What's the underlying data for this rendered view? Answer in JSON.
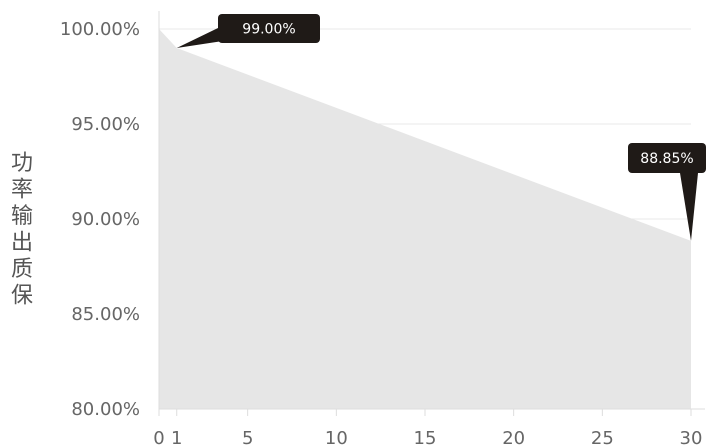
{
  "chart_data": {
    "type": "area",
    "ylabel": "功率输出质保",
    "x": [
      0,
      1,
      30
    ],
    "values": [
      100.0,
      99.0,
      88.85
    ],
    "xticks": [
      {
        "value": 0,
        "label": "0"
      },
      {
        "value": 1,
        "label": "1"
      },
      {
        "value": 5,
        "label": "5"
      },
      {
        "value": 10,
        "label": "10"
      },
      {
        "value": 15,
        "label": "15"
      },
      {
        "value": 20,
        "label": "20"
      },
      {
        "value": 25,
        "label": "25"
      },
      {
        "value": 30,
        "label": "30"
      }
    ],
    "yticks": [
      {
        "value": 100,
        "label": "100.00%"
      },
      {
        "value": 95,
        "label": "95.00%"
      },
      {
        "value": 90,
        "label": "90.00%"
      },
      {
        "value": 85,
        "label": "85.00%"
      },
      {
        "value": 80,
        "label": "80.00%"
      }
    ],
    "xlim": [
      0,
      30
    ],
    "ylim": [
      80,
      100
    ],
    "grid": true,
    "annotations": [
      {
        "x": 1,
        "y": 99.0,
        "label": "99.00%"
      },
      {
        "x": 30,
        "y": 88.85,
        "label": "88.85%"
      }
    ],
    "colors": {
      "area": "#e6e6e6",
      "callout": "#1f1a17",
      "grid": "#e8e8e8",
      "axis": "#dddddd"
    }
  }
}
